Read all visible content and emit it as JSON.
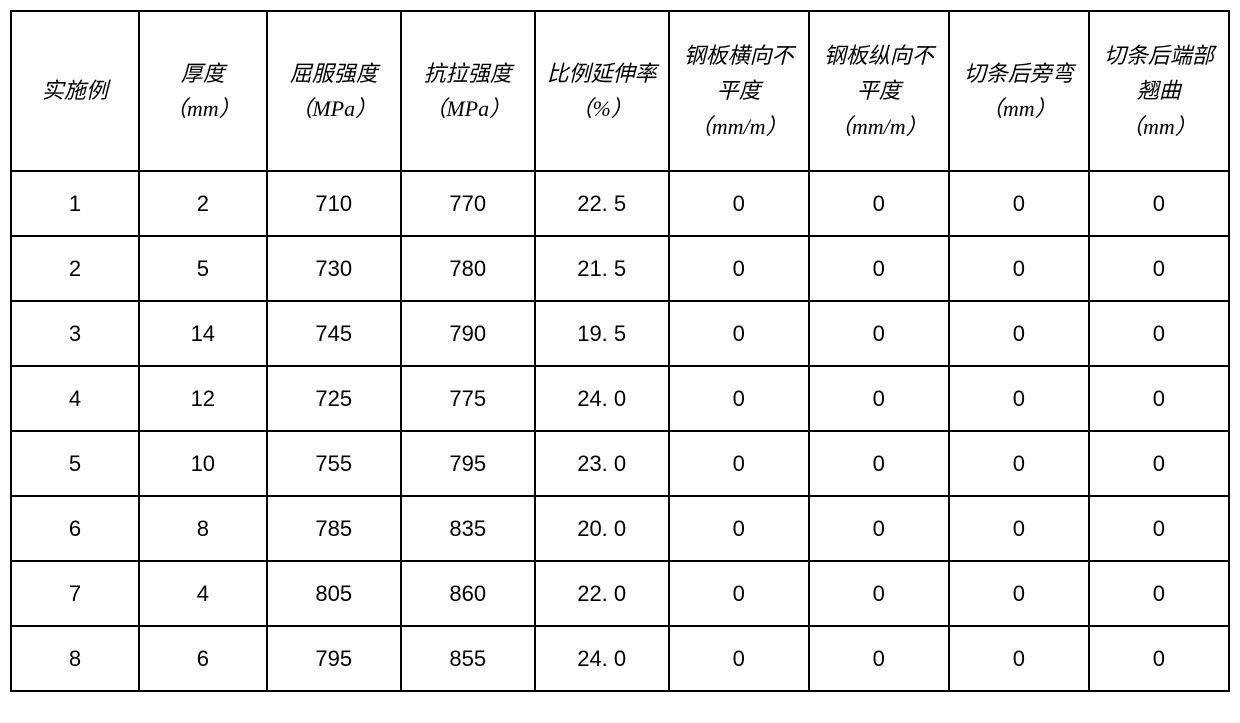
{
  "table": {
    "columns": [
      {
        "label": "实施例",
        "unit": ""
      },
      {
        "label": "厚度",
        "unit": "（mm）"
      },
      {
        "label": "屈服强度",
        "unit": "（MPa）"
      },
      {
        "label": "抗拉强度",
        "unit": "（MPa）"
      },
      {
        "label": "比例延伸率",
        "unit": "（%）"
      },
      {
        "label": "钢板横向不平度",
        "unit": "（mm/m）"
      },
      {
        "label": "钢板纵向不平度",
        "unit": "（mm/m）"
      },
      {
        "label": "切条后旁弯",
        "unit": "（mm）"
      },
      {
        "label": "切条后端部翘曲",
        "unit": "（mm）"
      }
    ],
    "rows": [
      [
        "1",
        "2",
        "710",
        "770",
        "22. 5",
        "0",
        "0",
        "0",
        "0"
      ],
      [
        "2",
        "5",
        "730",
        "780",
        "21. 5",
        "0",
        "0",
        "0",
        "0"
      ],
      [
        "3",
        "14",
        "745",
        "790",
        "19. 5",
        "0",
        "0",
        "0",
        "0"
      ],
      [
        "4",
        "12",
        "725",
        "775",
        "24. 0",
        "0",
        "0",
        "0",
        "0"
      ],
      [
        "5",
        "10",
        "755",
        "795",
        "23. 0",
        "0",
        "0",
        "0",
        "0"
      ],
      [
        "6",
        "8",
        "785",
        "835",
        "20. 0",
        "0",
        "0",
        "0",
        "0"
      ],
      [
        "7",
        "4",
        "805",
        "860",
        "22. 0",
        "0",
        "0",
        "0",
        "0"
      ],
      [
        "8",
        "6",
        "795",
        "855",
        "24. 0",
        "0",
        "0",
        "0",
        "0"
      ]
    ],
    "styling": {
      "border_color": "#000000",
      "border_width": 2,
      "background_color": "#ffffff",
      "header_font_style": "italic",
      "header_font_size": 22,
      "body_font_size": 22,
      "text_color": "#000000",
      "header_row_height": 160,
      "body_row_height": 65,
      "total_width": 1220,
      "col_widths_pct": [
        10.5,
        10.5,
        11,
        11,
        11,
        11.5,
        11.5,
        11.5,
        11.5
      ]
    }
  }
}
